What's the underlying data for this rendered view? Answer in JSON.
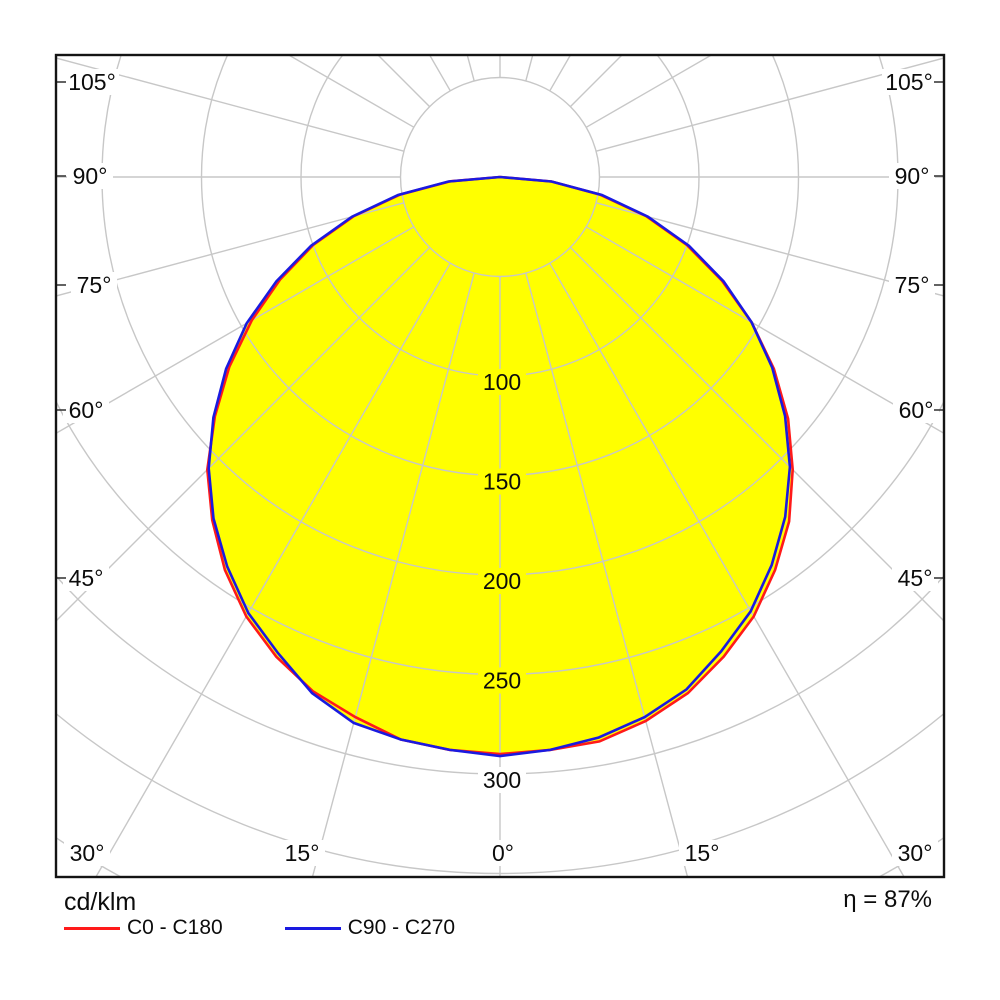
{
  "title_unit": "cd/klm",
  "efficiency": "η = 87%",
  "legend": [
    {
      "label": "C0 - C180",
      "color": "#ff1a1a"
    },
    {
      "label": "C90 - C270",
      "color": "#1a1ae0"
    }
  ],
  "axis": {
    "side_labels": [
      "105°",
      "90°",
      "75°",
      "60°",
      "45°"
    ],
    "bottom_labels": [
      "30°",
      "15°",
      "0°",
      "15°",
      "30°"
    ],
    "radial_labels": [
      "100",
      "150",
      "200",
      "250",
      "300"
    ]
  },
  "colors": {
    "fill": "#ffff00",
    "grid": "#c7c7c7",
    "frame": "#141414",
    "c0_curve": "#ff1a1a",
    "c90_curve": "#1a1ae0"
  },
  "chart_data": {
    "type": "polar_photometric",
    "title": "Luminous intensity distribution",
    "unit": "cd/klm",
    "efficiency_percent": 87,
    "angular_grid_step_deg": 15,
    "radial_grid_step": 50,
    "radial_ticks": [
      100,
      150,
      200,
      250,
      300
    ],
    "gamma_deg": [
      -90,
      -85,
      -80,
      -75,
      -70,
      -65,
      -60,
      -55,
      -50,
      -45,
      -40,
      -35,
      -30,
      -25,
      -20,
      -15,
      -10,
      -5,
      0,
      5,
      10,
      15,
      20,
      25,
      30,
      35,
      40,
      45,
      50,
      55,
      60,
      65,
      70,
      75,
      80,
      85,
      90
    ],
    "series": [
      {
        "name": "C0 - C180",
        "color": "#ff1a1a",
        "values": [
          0,
          25,
          51,
          76,
          100,
          122,
          144,
          166,
          187,
          208,
          225,
          241,
          255,
          266,
          275,
          281,
          287,
          289,
          290,
          289,
          288,
          283,
          276,
          266,
          255,
          241,
          226,
          208,
          189,
          168,
          146,
          123,
          100,
          76,
          51,
          26,
          0
        ]
      },
      {
        "name": "C90 - C270",
        "color": "#1a1ae0",
        "values": [
          0,
          26,
          52,
          77,
          101,
          124,
          147,
          168,
          188,
          207,
          224,
          239,
          253,
          264,
          276,
          284,
          287,
          289,
          291,
          289,
          286,
          281,
          274,
          263,
          252,
          238,
          223,
          206,
          187,
          167,
          146,
          124,
          101,
          77,
          52,
          26,
          0
        ]
      }
    ]
  }
}
